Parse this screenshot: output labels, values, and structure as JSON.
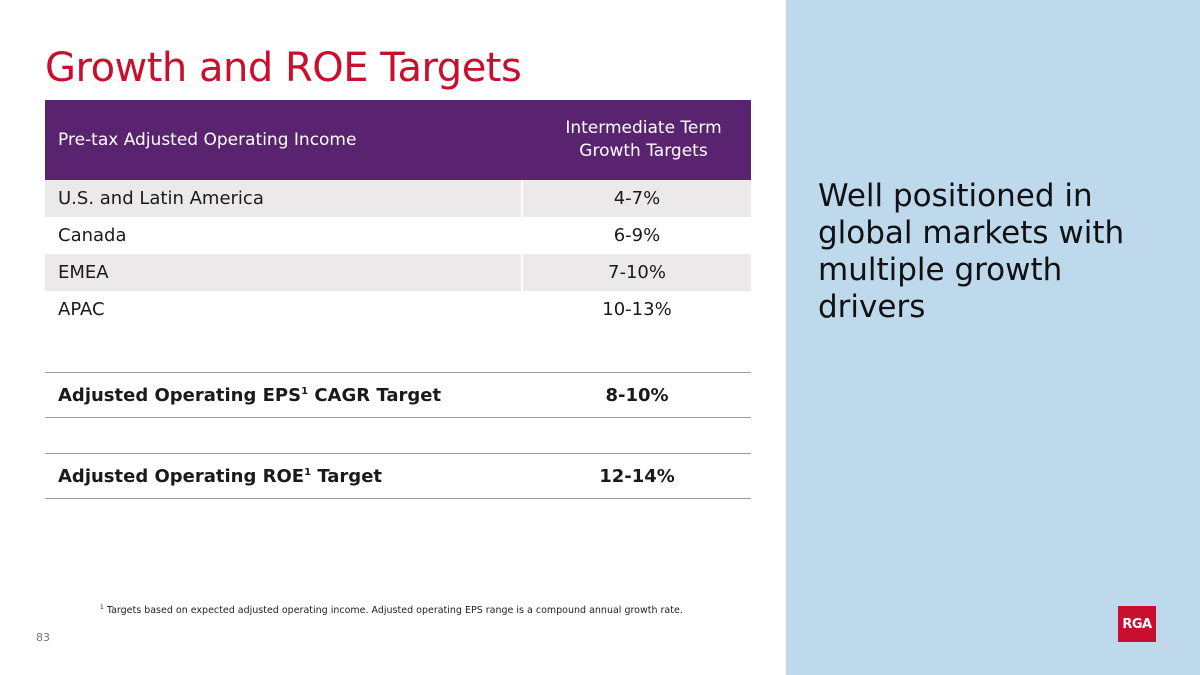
{
  "title": "Growth and ROE Targets",
  "table": {
    "header_left": "Pre-tax Adjusted Operating Income",
    "header_right": "Intermediate Term\nGrowth Targets",
    "rows": [
      {
        "region": "U.S. and Latin America",
        "value": "4-7%"
      },
      {
        "region": "Canada",
        "value": "6-9%"
      },
      {
        "region": "EMEA",
        "value": "7-10%"
      },
      {
        "region": "APAC",
        "value": "10-13%"
      }
    ]
  },
  "eps_target": {
    "label": "Adjusted Operating EPS",
    "sup": "1",
    "label_suffix": " CAGR Target",
    "value": "8-10%"
  },
  "roe_target": {
    "label": "Adjusted Operating ROE",
    "sup": "1",
    "label_suffix": " Target",
    "value": "12-14%"
  },
  "side_panel": {
    "tagline": "Well positioned in global markets with multiple growth drivers"
  },
  "footnote": {
    "marker": "1",
    "text": " Targets based on expected adjusted operating income. Adjusted operating EPS range is a compound annual growth rate."
  },
  "page_number": "83",
  "logo_text": "RGA",
  "colors": {
    "accent_red": "#c8102e",
    "header_purple": "#5a2370",
    "panel_blue": "#bed8ec",
    "row_shade": "#ebe9e9"
  }
}
